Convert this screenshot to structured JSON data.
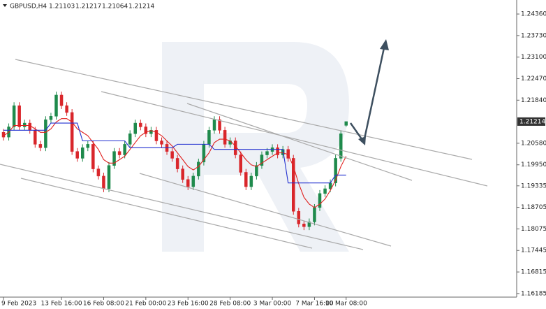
{
  "chart_data": {
    "type": "candlestick",
    "symbol": "GBPUSD,H4",
    "categories": [
      "9 Feb 2023",
      null,
      null,
      null,
      null,
      null,
      null,
      null,
      null,
      null,
      null,
      "13 Feb 16:00",
      null,
      null,
      null,
      null,
      null,
      null,
      null,
      "16 Feb 08:00",
      null,
      null,
      null,
      null,
      null,
      null,
      null,
      "21 Feb 00:00",
      null,
      null,
      null,
      null,
      null,
      null,
      null,
      "23 Feb 16:00",
      null,
      null,
      null,
      null,
      null,
      null,
      null,
      "28 Feb 08:00",
      null,
      null,
      null,
      null,
      null,
      null,
      null,
      "3 Mar 00:00",
      null,
      null,
      null,
      null,
      null,
      null,
      null,
      "7 Mar 16:00",
      null,
      null,
      null,
      null,
      null,
      "10 Mar 08:00"
    ],
    "open": [
      1.209,
      1.2076,
      1.2106,
      1.2168,
      1.2106,
      1.2117,
      1.2096,
      1.2055,
      1.2045,
      1.2127,
      1.2137,
      1.2199,
      1.2168,
      1.2148,
      1.2034,
      1.2014,
      1.2045,
      1.2055,
      1.1983,
      1.1962,
      1.1925,
      1.1993,
      1.2034,
      1.2024,
      1.2055,
      1.2086,
      1.2117,
      1.2106,
      1.2086,
      1.2096,
      1.2065,
      1.2055,
      1.2034,
      1.2014,
      1.1983,
      1.1952,
      1.1931,
      1.1962,
      1.2003,
      1.2055,
      1.2096,
      1.2127,
      1.2096,
      1.2055,
      1.2065,
      1.2024,
      1.1973,
      1.1931,
      1.1962,
      1.1993,
      1.2024,
      1.2034,
      1.2045,
      1.2024,
      1.204,
      1.2014,
      1.1859,
      1.1822,
      1.1814,
      1.1828,
      1.187,
      1.1911,
      1.1925,
      1.1942,
      1.2014,
      1.21103
    ],
    "high": [
      1.21,
      1.2116,
      1.2178,
      1.2178,
      1.2127,
      1.2127,
      1.2106,
      1.2065,
      1.2137,
      1.2147,
      1.2209,
      1.2209,
      1.2178,
      1.2158,
      1.2044,
      1.2055,
      1.2065,
      1.2065,
      1.1993,
      1.1972,
      1.2003,
      1.2044,
      1.2044,
      1.2065,
      1.2096,
      1.2127,
      1.2127,
      1.2116,
      1.2106,
      1.2106,
      1.2075,
      1.2065,
      1.2044,
      1.2024,
      1.1993,
      1.1962,
      1.1972,
      1.2013,
      1.2065,
      1.2106,
      1.2137,
      1.2137,
      1.2106,
      1.2075,
      1.2075,
      1.2034,
      1.1983,
      1.1972,
      1.2003,
      1.2034,
      1.2044,
      1.2055,
      1.2055,
      1.205,
      1.205,
      1.2024,
      1.1869,
      1.1832,
      1.1838,
      1.188,
      1.1921,
      1.1935,
      1.1952,
      1.2024,
      1.2096,
      1.21217
    ],
    "low": [
      1.2066,
      1.2066,
      1.2096,
      1.2096,
      1.2096,
      1.2086,
      1.2045,
      1.2035,
      1.2035,
      1.2117,
      1.2127,
      1.2158,
      1.2138,
      1.2024,
      1.2004,
      1.2004,
      1.2035,
      1.1973,
      1.1952,
      1.1915,
      1.1915,
      1.1983,
      1.2014,
      1.2014,
      1.2045,
      1.2076,
      1.2096,
      1.2076,
      1.2076,
      1.2055,
      1.2045,
      1.2024,
      1.2004,
      1.1973,
      1.1942,
      1.1921,
      1.1921,
      1.1952,
      1.1993,
      1.2045,
      1.2086,
      1.2086,
      1.2045,
      1.2045,
      1.2014,
      1.1963,
      1.1921,
      1.1921,
      1.1952,
      1.1983,
      1.2014,
      1.2024,
      1.2014,
      1.2014,
      1.2004,
      1.1849,
      1.1812,
      1.1804,
      1.1804,
      1.1818,
      1.186,
      1.1901,
      1.1915,
      1.1932,
      1.2004,
      1.21064
    ],
    "close": [
      1.2076,
      1.2106,
      1.2168,
      1.2106,
      1.2117,
      1.2096,
      1.2055,
      1.2045,
      1.2127,
      1.2137,
      1.2199,
      1.2168,
      1.2148,
      1.2034,
      1.2014,
      1.2045,
      1.2055,
      1.1983,
      1.1962,
      1.1925,
      1.1993,
      1.2034,
      1.2024,
      1.2055,
      1.2086,
      1.2117,
      1.2106,
      1.2086,
      1.2096,
      1.2065,
      1.2055,
      1.2034,
      1.2014,
      1.1983,
      1.1952,
      1.1931,
      1.1962,
      1.2003,
      1.2055,
      1.2096,
      1.2127,
      1.2096,
      1.2055,
      1.2065,
      1.2024,
      1.1973,
      1.1931,
      1.1962,
      1.1993,
      1.2024,
      1.2034,
      1.2045,
      1.2024,
      1.204,
      1.2014,
      1.1859,
      1.1822,
      1.1814,
      1.1828,
      1.187,
      1.1911,
      1.1925,
      1.1942,
      1.2014,
      1.2086,
      1.21214
    ],
    "up_color": "#1f8a4c",
    "down_color": "#d9262b",
    "overlays": [
      {
        "color": "#e0201e",
        "values": [
          1.208,
          1.209,
          1.211,
          1.211,
          1.211,
          1.211,
          1.21,
          1.209,
          1.209,
          1.21,
          1.212,
          1.213,
          1.213,
          1.212,
          1.21,
          1.209,
          1.208,
          1.206,
          1.204,
          1.201,
          1.2,
          1.2,
          1.201,
          1.202,
          1.204,
          1.206,
          1.208,
          1.209,
          1.2095,
          1.209,
          1.208,
          1.2065,
          1.205,
          1.203,
          1.201,
          1.199,
          1.198,
          1.199,
          1.201,
          1.203,
          1.206,
          1.207,
          1.207,
          1.2065,
          1.205,
          1.203,
          1.201,
          1.1995,
          1.199,
          1.2,
          1.201,
          1.202,
          1.203,
          1.203,
          1.2025,
          1.199,
          1.194,
          1.19,
          1.188,
          1.187,
          1.188,
          1.1895,
          1.192,
          1.195,
          1.199,
          1.202
        ]
      },
      {
        "color": "#2230d0",
        "values": [
          1.2096,
          1.2096,
          1.2096,
          1.2096,
          1.2096,
          1.2096,
          1.2096,
          1.2096,
          1.2096,
          1.2117,
          1.2117,
          1.2117,
          1.2117,
          1.2117,
          1.2117,
          1.2065,
          1.2065,
          1.2065,
          1.2065,
          1.2065,
          1.2065,
          1.2065,
          1.2065,
          1.2065,
          1.2045,
          1.2045,
          1.2045,
          1.2045,
          1.2045,
          1.2045,
          1.2045,
          1.2045,
          1.2045,
          1.2055,
          1.2055,
          1.2055,
          1.2055,
          1.2055,
          1.2055,
          1.2055,
          1.204,
          1.204,
          1.204,
          1.204,
          1.204,
          1.204,
          1.204,
          1.204,
          1.204,
          1.204,
          1.204,
          1.204,
          1.204,
          1.204,
          1.1942,
          1.1942,
          1.1942,
          1.1942,
          1.1942,
          1.1942,
          1.1942,
          1.1942,
          1.1942,
          1.1965,
          1.1965,
          1.1965
        ]
      }
    ],
    "ylim": [
      1.1608,
      1.2477
    ],
    "yticks": [
      {
        "value": 1.2436,
        "label": "1.24360"
      },
      {
        "value": 1.2373,
        "label": "1.23730"
      },
      {
        "value": 1.231,
        "label": "1.23100"
      },
      {
        "value": 1.2247,
        "label": "1.22470"
      },
      {
        "value": 1.2184,
        "label": "1.21840"
      },
      {
        "value": 1.2058,
        "label": "1.20580"
      },
      {
        "value": 1.1995,
        "label": "1.19950"
      },
      1.19335,
      1.18705,
      1.18075,
      1.17445,
      1.16815,
      1.16185
    ]
  }
}
